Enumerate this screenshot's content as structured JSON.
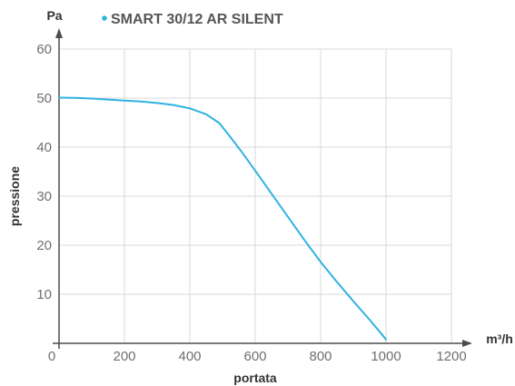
{
  "chart_data": {
    "type": "line",
    "title": "",
    "xlabel": "portata",
    "ylabel": "pressione",
    "x_unit": "m³/h",
    "y_unit": "Pa",
    "xlim": [
      0,
      1200
    ],
    "ylim": [
      0,
      60
    ],
    "x_ticks": [
      "0",
      "200",
      "400",
      "600",
      "800",
      "1000",
      "1200"
    ],
    "y_ticks": [
      "10",
      "20",
      "30",
      "40",
      "50",
      "60"
    ],
    "grid": true,
    "legend_position": "top",
    "colors": {
      "series": "#2fb2e0",
      "grid": "#d9d9d9",
      "axis": "#4d4d4d"
    },
    "series": [
      {
        "name": "SMART 30/12 AR SILENT",
        "x": [
          0,
          50,
          100,
          150,
          200,
          250,
          300,
          350,
          400,
          450,
          490,
          520,
          560,
          600,
          650,
          700,
          750,
          800,
          850,
          900,
          950,
          1000
        ],
        "y": [
          50.1,
          50.05,
          49.9,
          49.7,
          49.5,
          49.3,
          49.0,
          48.6,
          47.9,
          46.7,
          44.9,
          42.4,
          38.9,
          35.2,
          30.5,
          25.8,
          21.1,
          16.6,
          12.5,
          8.6,
          4.8,
          0.8
        ]
      }
    ]
  }
}
